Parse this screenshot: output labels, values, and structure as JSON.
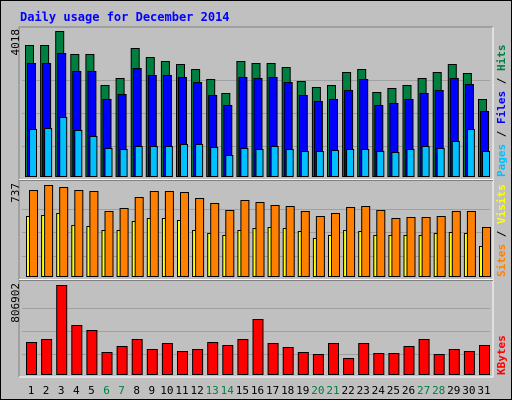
{
  "title": "Daily usage for December 2014",
  "colors": {
    "background": "#c0c0c0",
    "title": "#0000ff",
    "hits": "#008040",
    "files": "#0000ff",
    "pages": "#00c0ff",
    "visits": "#ffff00",
    "sites": "#ff8000",
    "kbytes": "#ff0000",
    "weekend": "#008040",
    "weekday": "#000000"
  },
  "chart_data": [
    {
      "type": "bar",
      "panel": "hits-files-pages",
      "legend": [
        "Pages",
        "Files",
        "Hits"
      ],
      "max_label": "4018",
      "ylim": [
        0,
        4018
      ],
      "categories": [
        "1",
        "2",
        "3",
        "4",
        "5",
        "6",
        "7",
        "8",
        "9",
        "10",
        "11",
        "12",
        "13",
        "14",
        "15",
        "16",
        "17",
        "18",
        "19",
        "20",
        "21",
        "22",
        "23",
        "24",
        "25",
        "26",
        "27",
        "28",
        "29",
        "30",
        "31"
      ],
      "series": [
        {
          "name": "Hits",
          "values": [
            3640,
            3640,
            4018,
            3380,
            3380,
            2520,
            2720,
            3540,
            3300,
            3200,
            3120,
            2960,
            2700,
            2320,
            3190,
            3140,
            3140,
            3040,
            2640,
            2480,
            2520,
            2880,
            2960,
            2340,
            2460,
            2520,
            2720,
            2880,
            3120,
            2860,
            2140
          ]
        },
        {
          "name": "Files",
          "values": [
            3330,
            3330,
            3620,
            3100,
            3100,
            2260,
            2420,
            3160,
            2980,
            2960,
            2900,
            2780,
            2400,
            2100,
            2920,
            2880,
            2900,
            2760,
            2400,
            2220,
            2280,
            2520,
            2860,
            2100,
            2160,
            2280,
            2460,
            2540,
            2880,
            2720,
            1920
          ]
        },
        {
          "name": "Pages",
          "values": [
            1320,
            1360,
            1640,
            1300,
            1140,
            800,
            780,
            840,
            840,
            860,
            900,
            920,
            820,
            600,
            800,
            780,
            860,
            780,
            720,
            720,
            740,
            760,
            780,
            720,
            700,
            780,
            840,
            800,
            1000,
            1320,
            720
          ]
        }
      ]
    },
    {
      "type": "bar",
      "panel": "visits-sites",
      "legend": [
        "Sites",
        "Visits"
      ],
      "max_label": "737",
      "ylim": [
        0,
        737
      ],
      "categories": [
        "1",
        "2",
        "3",
        "4",
        "5",
        "6",
        "7",
        "8",
        "9",
        "10",
        "11",
        "12",
        "13",
        "14",
        "15",
        "16",
        "17",
        "18",
        "19",
        "20",
        "21",
        "22",
        "23",
        "24",
        "25",
        "26",
        "27",
        "28",
        "29",
        "30",
        "31"
      ],
      "series": [
        {
          "name": "Visits",
          "values": [
            490,
            500,
            510,
            420,
            410,
            380,
            380,
            450,
            470,
            470,
            460,
            380,
            350,
            340,
            380,
            390,
            400,
            390,
            370,
            310,
            340,
            380,
            370,
            340,
            340,
            340,
            340,
            350,
            360,
            350,
            250
          ]
        },
        {
          "name": "Sites",
          "values": [
            700,
            737,
            720,
            700,
            690,
            530,
            550,
            640,
            690,
            690,
            680,
            630,
            590,
            540,
            620,
            600,
            580,
            570,
            530,
            490,
            510,
            560,
            570,
            540,
            470,
            480,
            480,
            490,
            530,
            530,
            400
          ]
        }
      ]
    },
    {
      "type": "bar",
      "panel": "kbytes",
      "legend": [
        "KBytes"
      ],
      "max_label": "806902",
      "ylim": [
        0,
        806902
      ],
      "categories": [
        "1",
        "2",
        "3",
        "4",
        "5",
        "6",
        "7",
        "8",
        "9",
        "10",
        "11",
        "12",
        "13",
        "14",
        "15",
        "16",
        "17",
        "18",
        "19",
        "20",
        "21",
        "22",
        "23",
        "24",
        "25",
        "26",
        "27",
        "28",
        "29",
        "30",
        "31"
      ],
      "series": [
        {
          "name": "KBytes",
          "values": [
            300000,
            320000,
            806902,
            445000,
            405000,
            210000,
            260000,
            320000,
            235000,
            290000,
            215000,
            235000,
            300000,
            270000,
            325000,
            505000,
            285000,
            250000,
            205000,
            190000,
            290000,
            150000,
            285000,
            195000,
            200000,
            260000,
            320000,
            185000,
            230000,
            215000,
            270000
          ]
        }
      ]
    }
  ]
}
